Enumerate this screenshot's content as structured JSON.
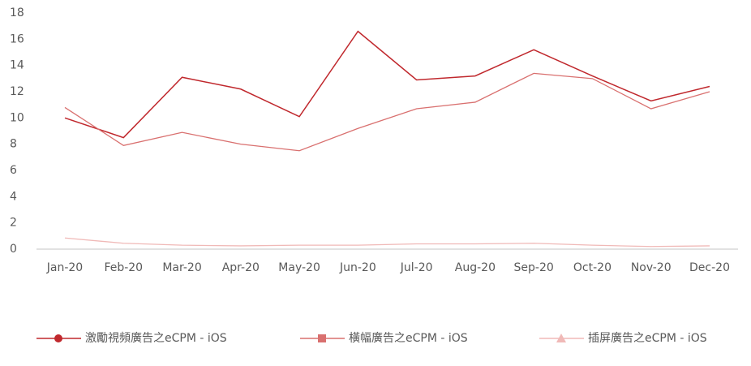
{
  "chart_data": {
    "type": "line",
    "categories": [
      "Jan-20",
      "Feb-20",
      "Mar-20",
      "Apr-20",
      "May-20",
      "Jun-20",
      "Jul-20",
      "Aug-20",
      "Sep-20",
      "Oct-20",
      "Nov-20",
      "Dec-20"
    ],
    "series": [
      {
        "name": "激勵視頻廣告之eCPM - iOS",
        "color": "#c0282d",
        "marker": "circle",
        "values": [
          10.0,
          8.5,
          13.1,
          12.2,
          10.1,
          16.6,
          12.9,
          13.2,
          15.2,
          13.2,
          11.3,
          12.4
        ]
      },
      {
        "name": "橫幅廣告之eCPM - iOS",
        "color": "#d9706f",
        "marker": "square",
        "values": [
          10.8,
          7.9,
          8.9,
          8.0,
          7.5,
          9.2,
          10.7,
          11.2,
          13.4,
          13.0,
          10.7,
          12.0
        ]
      },
      {
        "name": "插屏廣告之eCPM - iOS",
        "color": "#f0b9b7",
        "marker": "triangle",
        "values": [
          0.85,
          0.45,
          0.3,
          0.25,
          0.3,
          0.3,
          0.4,
          0.4,
          0.45,
          0.3,
          0.2,
          0.25
        ]
      }
    ],
    "ylim": [
      0,
      18
    ],
    "yticks": [
      0,
      2,
      4,
      6,
      8,
      10,
      12,
      14,
      16,
      18
    ],
    "grid": false,
    "legend": "bottom"
  }
}
